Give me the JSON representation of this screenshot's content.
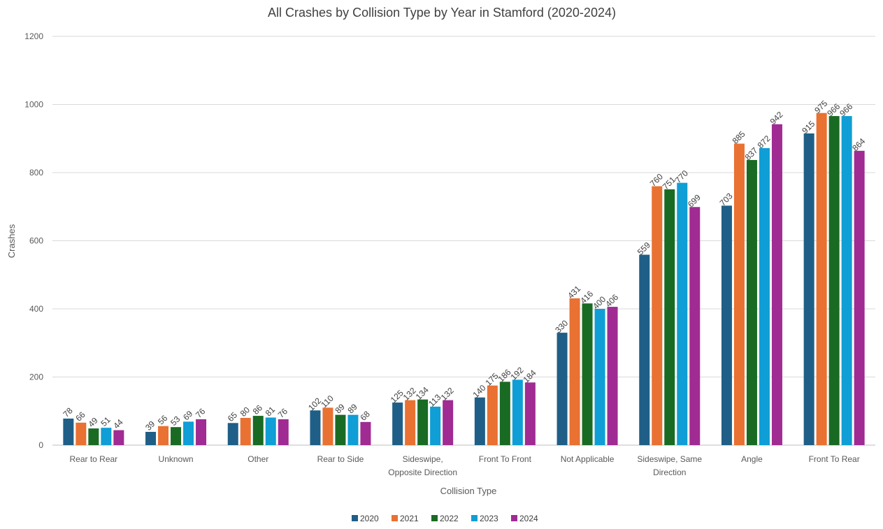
{
  "chart_data": {
    "type": "bar",
    "title": "All Crashes by Collision Type by Year in Stamford (2020-2024)",
    "xlabel": "Collision Type",
    "ylabel": "Crashes",
    "ylim": [
      0,
      1200
    ],
    "yticks": [
      0,
      200,
      400,
      600,
      800,
      1000,
      1200
    ],
    "grid": true,
    "legend_position": "bottom",
    "categories": [
      [
        "Rear to Rear"
      ],
      [
        "Unknown"
      ],
      [
        "Other"
      ],
      [
        "Rear to Side"
      ],
      [
        "Sideswipe,",
        "Opposite Direction"
      ],
      [
        "Front To Front"
      ],
      [
        "Not Applicable"
      ],
      [
        "Sideswipe, Same",
        "Direction"
      ],
      [
        "Angle"
      ],
      [
        "Front To Rear"
      ]
    ],
    "series": [
      {
        "name": "2020",
        "color": "#1f5f87",
        "values": [
          78,
          39,
          65,
          102,
          125,
          140,
          330,
          559,
          703,
          915
        ]
      },
      {
        "name": "2021",
        "color": "#e97132",
        "values": [
          66,
          56,
          80,
          110,
          132,
          175,
          431,
          760,
          885,
          975
        ]
      },
      {
        "name": "2022",
        "color": "#196b24",
        "values": [
          49,
          53,
          86,
          89,
          134,
          186,
          416,
          751,
          837,
          966
        ]
      },
      {
        "name": "2023",
        "color": "#0f9ed5",
        "values": [
          51,
          69,
          81,
          89,
          113,
          192,
          400,
          770,
          872,
          966
        ]
      },
      {
        "name": "2024",
        "color": "#a02b93",
        "values": [
          44,
          76,
          76,
          68,
          132,
          184,
          406,
          699,
          942,
          864
        ]
      }
    ]
  }
}
